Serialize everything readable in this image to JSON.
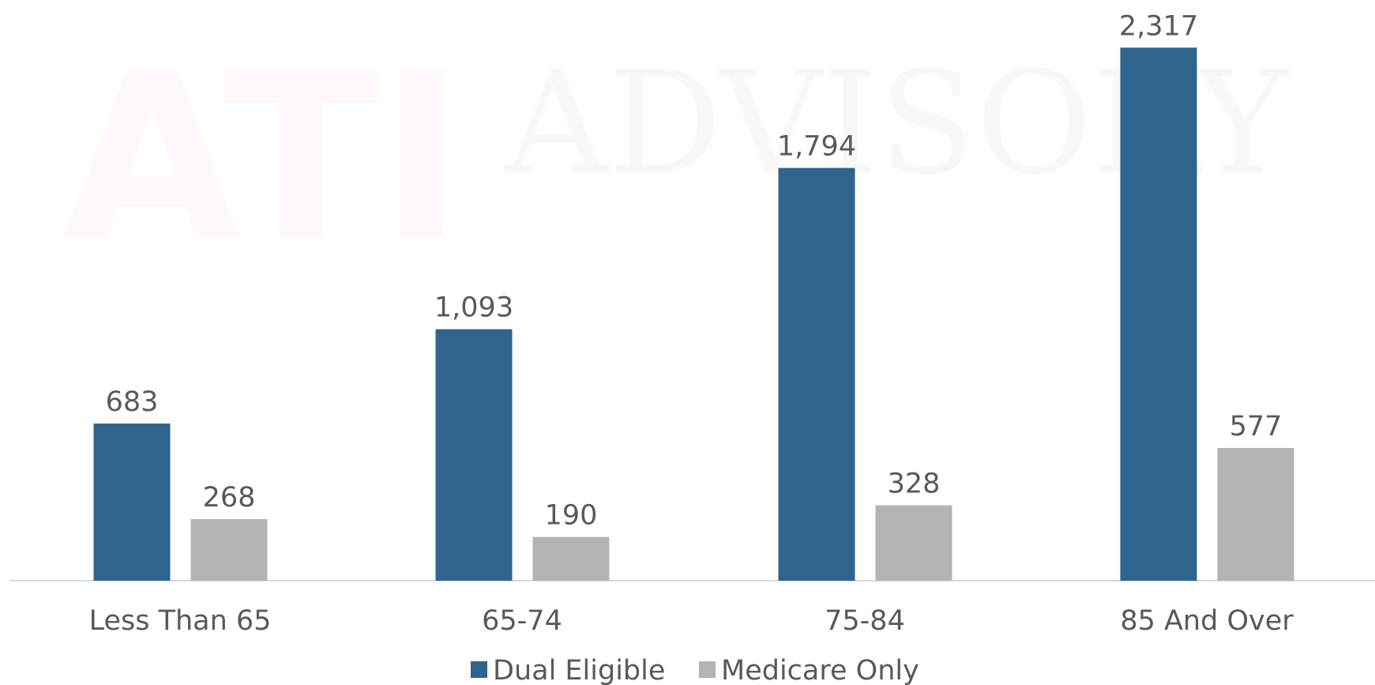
{
  "chart_data": {
    "type": "bar",
    "watermark": {
      "logo": "ATI",
      "name": "ADVISORY"
    },
    "categories": [
      "Less Than 65",
      "65-74",
      "75-84",
      "85 And Over"
    ],
    "series": [
      {
        "name": "Dual Eligible",
        "color": "#2e648d",
        "values": [
          683,
          1093,
          1794,
          2317
        ],
        "value_labels": [
          "683",
          "1,093",
          "1,794",
          "2,317"
        ]
      },
      {
        "name": "Medicare Only",
        "color": "#b4b4b4",
        "values": [
          268,
          190,
          328,
          577
        ],
        "value_labels": [
          "268",
          "190",
          "328",
          "577"
        ]
      }
    ],
    "ylim": [
      0,
      2500
    ],
    "legend": "bottom"
  }
}
